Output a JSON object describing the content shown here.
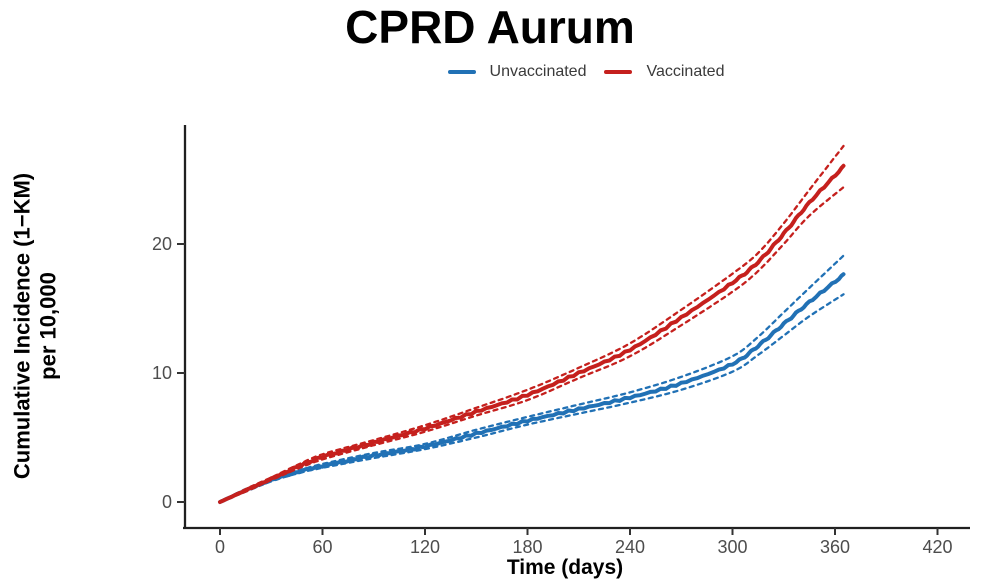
{
  "page": {
    "title": "CPRD Aurum"
  },
  "legend": {
    "items": [
      {
        "label": "Unvaccinated",
        "color": "#2171B5"
      },
      {
        "label": "Vaccinated",
        "color": "#C5201D"
      }
    ]
  },
  "axis_titles": {
    "x": "Time (days)",
    "y_line1": "Cumulative Incidence (1−KM)",
    "y_line2": "per 10,000"
  },
  "chart_data": {
    "type": "line",
    "title": "CPRD Aurum",
    "xlabel": "Time (days)",
    "ylabel": "Cumulative Incidence (1−KM) per 10,000",
    "x_ticks": [
      0,
      60,
      120,
      180,
      240,
      300,
      360,
      420
    ],
    "y_ticks": [
      0,
      10,
      20
    ],
    "xlim": [
      -21,
      440
    ],
    "ylim": [
      -0.5,
      27.8
    ],
    "grid": false,
    "legend_position": "top-center",
    "x": [
      0,
      15,
      30,
      45,
      60,
      90,
      120,
      150,
      180,
      210,
      240,
      270,
      300,
      315,
      330,
      345,
      365
    ],
    "series": [
      {
        "name": "Unvaccinated",
        "color": "#2171B5",
        "line": "solid",
        "ci_style": "dashed",
        "values": [
          0,
          0.9,
          1.7,
          2.3,
          2.8,
          3.6,
          4.3,
          5.3,
          6.3,
          7.2,
          8.1,
          9.2,
          10.7,
          12.1,
          13.8,
          15.5,
          17.6
        ],
        "ci_lower": [
          0,
          0.8,
          1.6,
          2.2,
          2.65,
          3.4,
          4.1,
          5.0,
          6.0,
          6.85,
          7.7,
          8.7,
          10.1,
          11.4,
          12.9,
          14.4,
          16.1
        ],
        "ci_upper": [
          0,
          1.0,
          1.8,
          2.4,
          2.95,
          3.8,
          4.5,
          5.6,
          6.6,
          7.55,
          8.5,
          9.7,
          11.3,
          12.8,
          14.7,
          16.6,
          19.1
        ]
      },
      {
        "name": "Vaccinated",
        "color": "#C5201D",
        "line": "solid",
        "ci_style": "dashed",
        "values": [
          0,
          0.9,
          1.8,
          2.7,
          3.5,
          4.6,
          5.7,
          7.0,
          8.3,
          10.0,
          11.8,
          14.3,
          17.0,
          18.6,
          20.8,
          23.2,
          26.0
        ],
        "ci_lower": [
          0,
          0.8,
          1.7,
          2.55,
          3.3,
          4.4,
          5.45,
          6.7,
          7.9,
          9.6,
          11.3,
          13.7,
          16.3,
          17.9,
          20.0,
          22.2,
          24.4
        ],
        "ci_upper": [
          0,
          1.0,
          1.9,
          2.85,
          3.7,
          4.8,
          5.95,
          7.3,
          8.7,
          10.4,
          12.3,
          14.9,
          17.7,
          19.3,
          21.6,
          24.2,
          27.6
        ]
      }
    ]
  }
}
